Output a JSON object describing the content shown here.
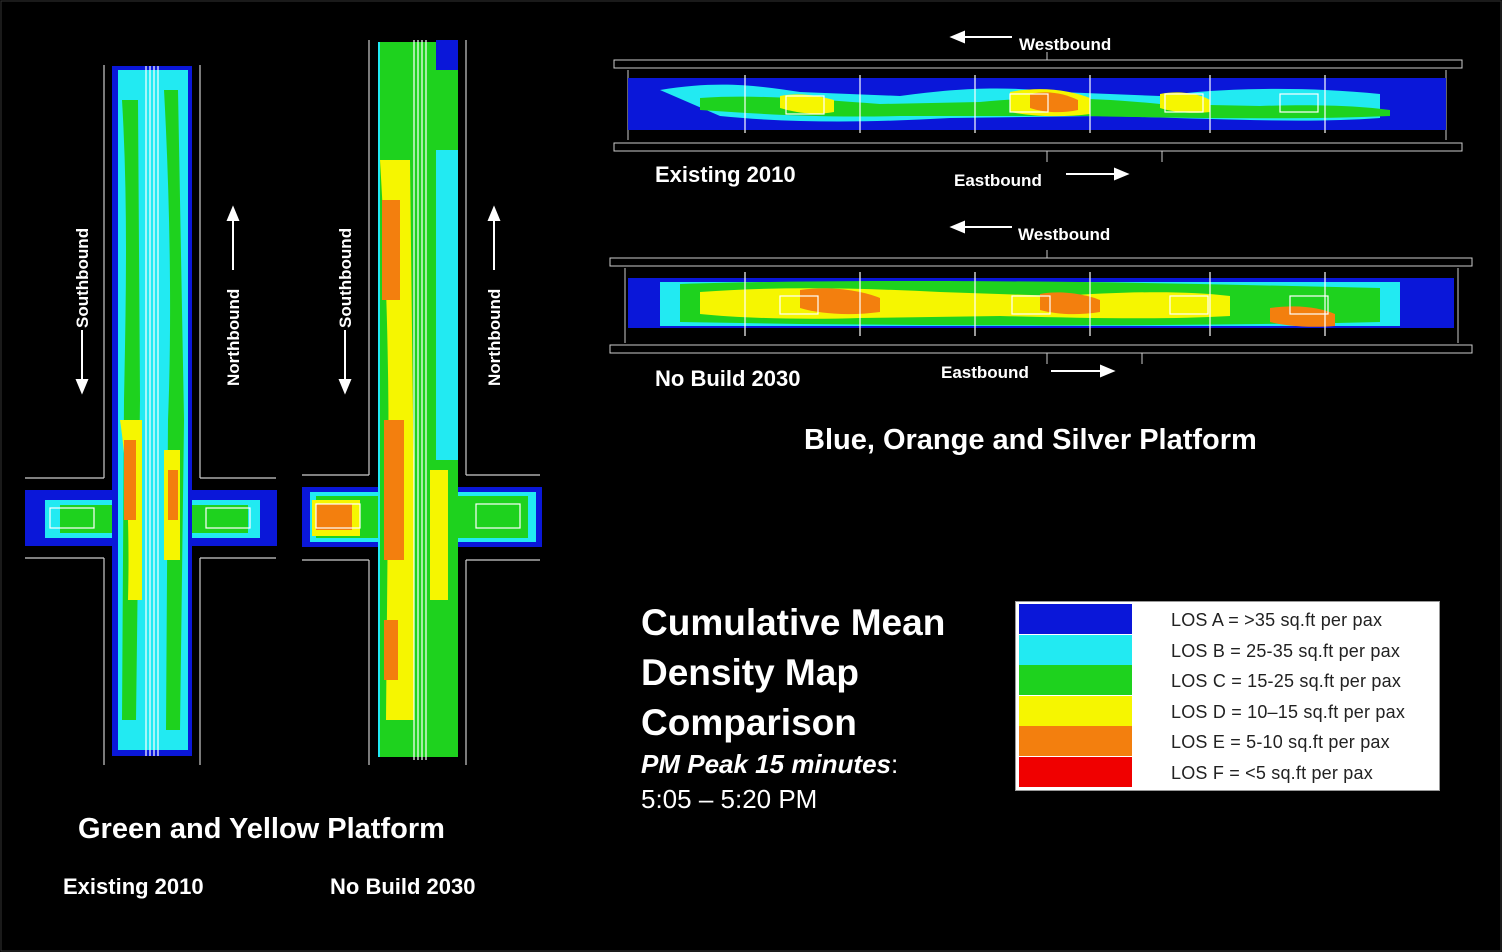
{
  "colors": {
    "los_a": "#0a17d9",
    "los_b": "#22eaf2",
    "los_c": "#1ed21e",
    "los_d": "#f6f600",
    "los_e": "#f37f0e",
    "los_f": "#f00000",
    "background": "#000000"
  },
  "direction_labels": {
    "westbound": "Westbound",
    "eastbound": "Eastbound",
    "southbound": "Southbound",
    "northbound": "Northbound"
  },
  "bos_platform": {
    "title": "Blue, Orange and Silver Platform",
    "scenario_top": "Existing 2010",
    "scenario_bottom": "No Build 2030"
  },
  "gy_platform": {
    "title": "Green and Yellow Platform",
    "scenario_left": "Existing 2010",
    "scenario_right": "No Build 2030"
  },
  "summary": {
    "title_line1": "Cumulative Mean",
    "title_line2": "Density Map",
    "title_line3": "Comparison",
    "period_italic": "PM Peak 15 minutes",
    "period_colon": ":",
    "time_range": "5:05 – 5:20 PM"
  },
  "legend": [
    {
      "label": "LOS A = >35 sq.ft per pax",
      "color": "#0a17d9"
    },
    {
      "label": "LOS B = 25-35 sq.ft per pax",
      "color": "#22eaf2"
    },
    {
      "label": "LOS C = 15-25 sq.ft per pax",
      "color": "#1ed21e"
    },
    {
      "label": "LOS D = 10–15 sq.ft per pax",
      "color": "#f6f600"
    },
    {
      "label": "LOS E = 5-10 sq.ft per pax",
      "color": "#f37f0e"
    },
    {
      "label": "LOS F = <5 sq.ft per pax",
      "color": "#f00000"
    }
  ]
}
